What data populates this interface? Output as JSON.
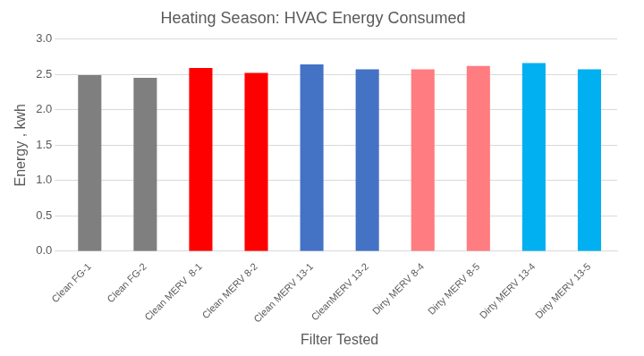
{
  "chart_data": {
    "type": "bar",
    "title": "Heating Season: HVAC Energy Consumed",
    "x_label": "Filter Tested",
    "y_label": "Energy , kwh",
    "categories": [
      "Clean FG-1",
      "Clean FG-2",
      "Clean MERV  8-1",
      "Clean MERV 8-2",
      "Clean MERV 13-1",
      "CleanMERV 13-2",
      "Dirty MERV 8-4",
      "Dirty MERV 8-5",
      "Dirty MERV 13-4",
      "Dirty MERV 13-5"
    ],
    "values": [
      2.49,
      2.45,
      2.59,
      2.52,
      2.64,
      2.57,
      2.57,
      2.62,
      2.66,
      2.57
    ],
    "colors": [
      "#7f7f7f",
      "#7f7f7f",
      "#ff0000",
      "#ff0000",
      "#4472c4",
      "#4472c4",
      "#ff7c80",
      "#ff7c80",
      "#00b0f0",
      "#00b0f0"
    ],
    "ylim": [
      0,
      3
    ],
    "yticks": [
      {
        "value": 0,
        "label": "0.0"
      },
      0.5,
      {
        "value": 1,
        "label": "1.0"
      },
      1.5,
      {
        "value": 2,
        "label": "2.0"
      },
      2.5,
      {
        "value": 3,
        "label": "3.0"
      }
    ],
    "grid": true
  }
}
